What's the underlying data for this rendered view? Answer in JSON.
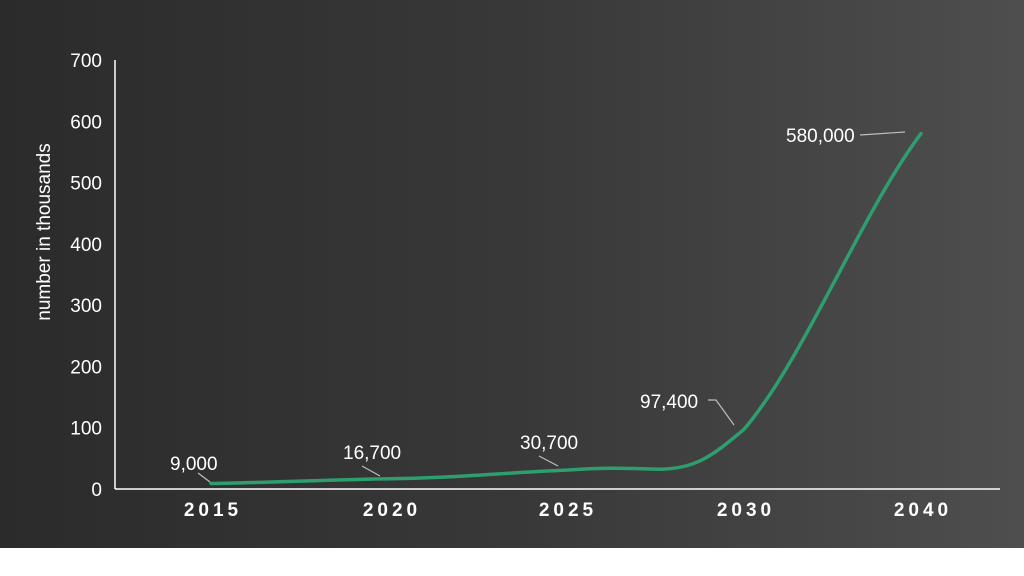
{
  "chart_data": {
    "type": "line",
    "title": "",
    "xlabel": "",
    "ylabel": "number in thousands",
    "x": [
      "2015",
      "2020",
      "2025",
      "2030",
      "2040"
    ],
    "y_ticks": [
      "0",
      "100",
      "200",
      "300",
      "400",
      "500",
      "600",
      "700"
    ],
    "ylim": [
      0,
      700
    ],
    "grid": false,
    "series": [
      {
        "values": [
          9,
          16.7,
          30.7,
          97.4,
          580
        ],
        "color": "#2e9e6e"
      }
    ],
    "data_labels": [
      "9,000",
      "16,700",
      "30,700",
      "97,400",
      "580,000"
    ]
  }
}
